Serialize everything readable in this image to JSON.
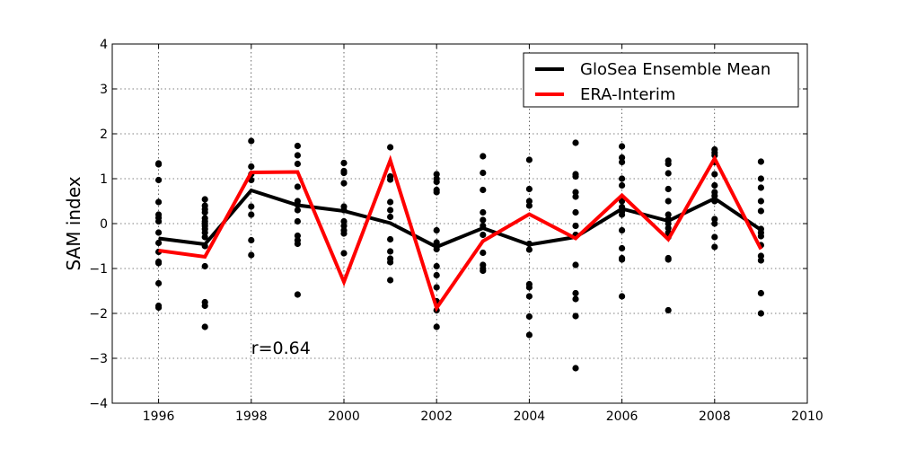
{
  "chart_data": {
    "type": "scatter",
    "xlabel": "",
    "ylabel": "SAM index",
    "xlim": [
      1995,
      2010
    ],
    "ylim": [
      -4,
      4
    ],
    "x_ticks": [
      "1996",
      "1998",
      "2000",
      "2002",
      "2004",
      "2006",
      "2008",
      "2010"
    ],
    "y_ticks": [
      "−4",
      "−3",
      "−2",
      "−1",
      "0",
      "1",
      "2",
      "3",
      "4"
    ],
    "grid": true,
    "legend_position": "top-right",
    "annotation": "r=0.64",
    "colors": {
      "mean": "#000000",
      "era": "#ff0000",
      "members": "#000000"
    },
    "series": [
      {
        "name": "GloSea Ensemble Mean",
        "x": [
          1996,
          1997,
          1998,
          1999,
          2000,
          2001,
          2002,
          2003,
          2004,
          2005,
          2006,
          2007,
          2008,
          2009
        ],
        "values": [
          -0.33,
          -0.46,
          0.74,
          0.41,
          0.28,
          0.01,
          -0.52,
          -0.1,
          -0.47,
          -0.3,
          0.33,
          0.06,
          0.56,
          -0.14
        ]
      },
      {
        "name": "ERA-Interim",
        "x": [
          1996,
          1997,
          1998,
          1999,
          2000,
          2001,
          2002,
          2003,
          2004,
          2005,
          2006,
          2007,
          2008,
          2009
        ],
        "values": [
          -0.6,
          -0.74,
          1.14,
          1.15,
          -1.3,
          1.41,
          -1.88,
          -0.39,
          0.21,
          -0.33,
          0.63,
          -0.35,
          1.45,
          -0.57
        ]
      }
    ],
    "members": [
      {
        "x": 1996,
        "values": [
          1.34,
          1.32,
          0.97,
          0.48,
          0.2,
          0.13,
          0.05,
          -0.2,
          -0.43,
          -0.63,
          -0.85,
          -0.88,
          -1.33,
          -1.83,
          -1.87
        ]
      },
      {
        "x": 1997,
        "values": [
          0.54,
          0.4,
          0.32,
          0.25,
          0.12,
          0.05,
          0.0,
          -0.05,
          -0.12,
          -0.2,
          -0.3,
          -0.5,
          -0.95,
          -1.75,
          -1.83,
          -2.3
        ]
      },
      {
        "x": 1998,
        "values": [
          1.84,
          1.27,
          1.1,
          0.97,
          0.38,
          0.2,
          -0.37,
          -0.7
        ]
      },
      {
        "x": 1999,
        "values": [
          1.73,
          1.52,
          1.33,
          0.82,
          0.5,
          0.42,
          0.3,
          0.05,
          -0.27,
          -0.37,
          -0.45,
          -1.58
        ]
      },
      {
        "x": 2000,
        "values": [
          1.35,
          1.17,
          1.13,
          0.9,
          0.38,
          0.3,
          0.05,
          -0.05,
          -0.15,
          -0.22,
          -0.66
        ]
      },
      {
        "x": 2001,
        "values": [
          1.7,
          1.05,
          0.98,
          0.48,
          0.3,
          0.15,
          -0.35,
          -0.62,
          -0.78,
          -0.86,
          -1.26
        ]
      },
      {
        "x": 2002,
        "values": [
          1.1,
          1.0,
          0.93,
          0.75,
          0.7,
          -0.15,
          -0.42,
          -0.57,
          -0.95,
          -1.15,
          -1.42,
          -1.73,
          -1.93,
          -2.3
        ]
      },
      {
        "x": 2003,
        "values": [
          1.5,
          1.13,
          0.75,
          0.25,
          0.08,
          -0.05,
          -0.25,
          -0.65,
          -0.92,
          -1.0,
          -1.05
        ]
      },
      {
        "x": 2004,
        "values": [
          1.42,
          0.77,
          0.5,
          0.4,
          -0.45,
          -0.58,
          -1.35,
          -1.42,
          -1.62,
          -2.07,
          -2.48
        ]
      },
      {
        "x": 2005,
        "values": [
          1.8,
          1.1,
          1.05,
          0.7,
          0.6,
          0.25,
          -0.05,
          -0.25,
          -0.92,
          -1.55,
          -1.68,
          -2.06,
          -3.22
        ]
      },
      {
        "x": 2006,
        "values": [
          1.72,
          1.47,
          1.37,
          1.0,
          0.85,
          0.5,
          0.37,
          0.27,
          0.2,
          -0.15,
          -0.55,
          -0.77,
          -0.8,
          -1.62
        ]
      },
      {
        "x": 2007,
        "values": [
          1.4,
          1.33,
          1.12,
          0.77,
          0.5,
          0.2,
          0.1,
          0.0,
          -0.1,
          -0.2,
          -0.3,
          -0.77,
          -0.8,
          -1.93
        ]
      },
      {
        "x": 2008,
        "values": [
          1.65,
          1.58,
          1.52,
          1.37,
          1.1,
          0.85,
          0.7,
          0.62,
          0.5,
          0.1,
          0.0,
          -0.3,
          -0.52
        ]
      },
      {
        "x": 2009,
        "values": [
          1.38,
          1.0,
          0.8,
          0.5,
          0.28,
          -0.12,
          -0.2,
          -0.28,
          -0.48,
          -0.72,
          -0.82,
          -1.55,
          -2.0
        ]
      }
    ]
  }
}
